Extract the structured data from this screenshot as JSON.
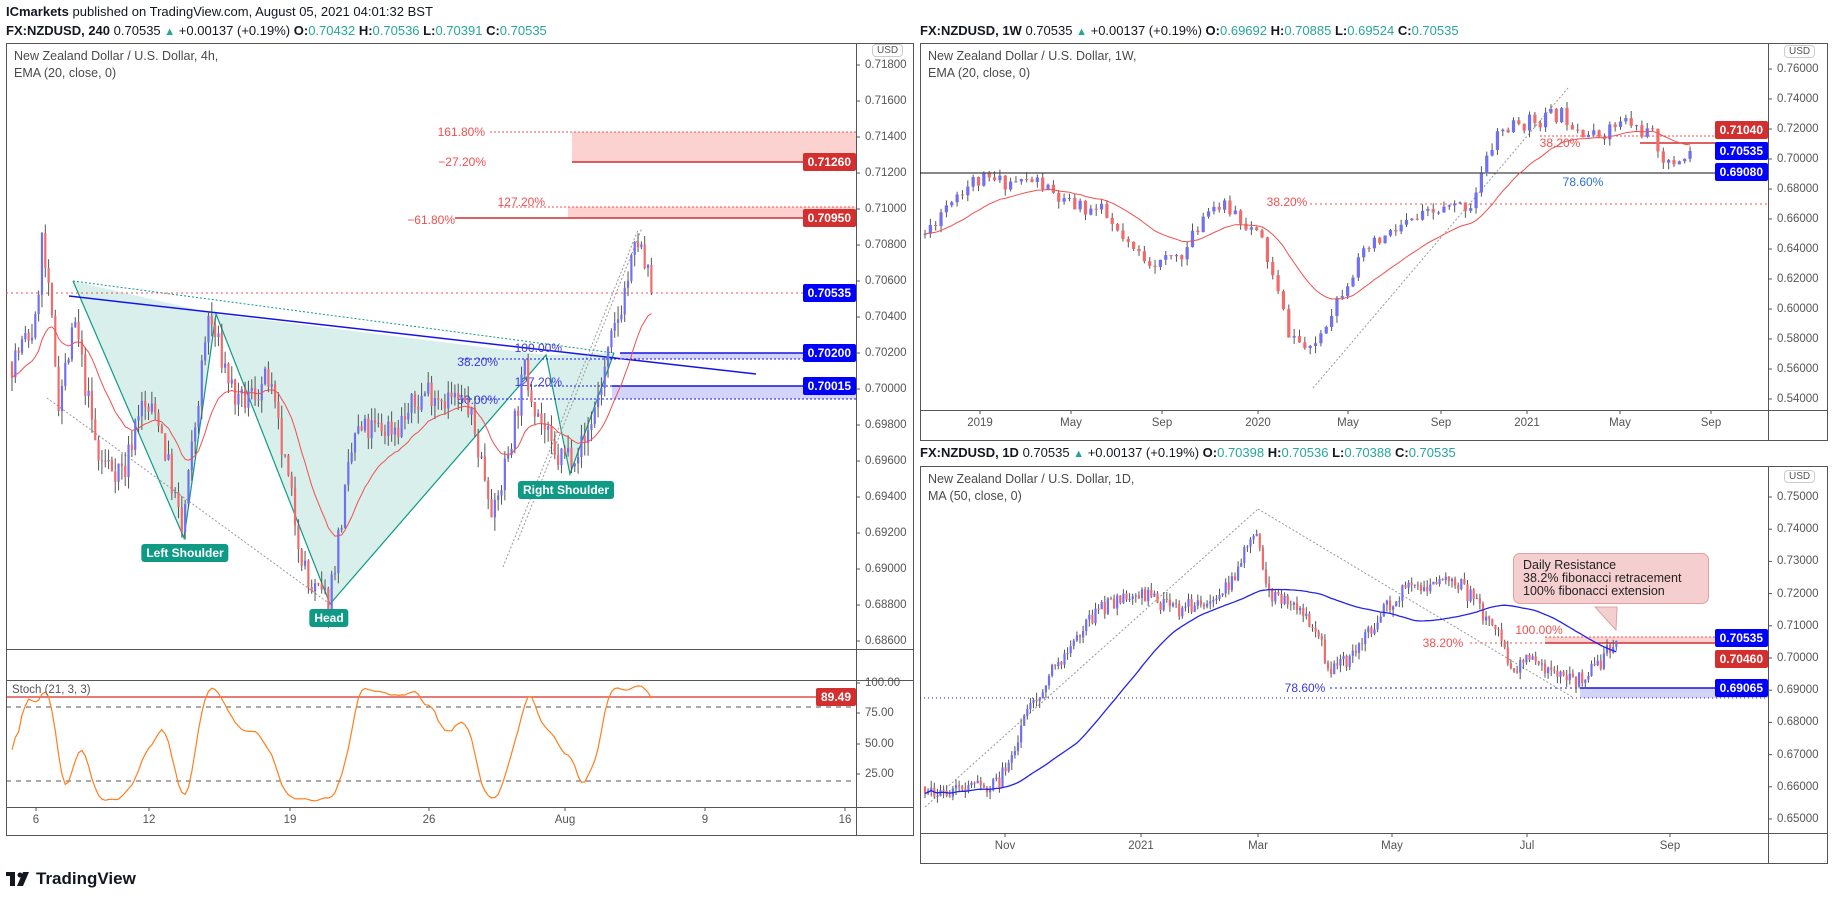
{
  "publisher": {
    "name": "ICmarkets",
    "text": "published on TradingView.com, August 05, 2021 04:01:32 BST"
  },
  "brand": {
    "logo_text": "TradingView"
  },
  "colors": {
    "up": "#7070f2",
    "down": "#f06b6b",
    "ema": "#f05050",
    "ma": "#2424e8",
    "tag_red": "#d32f2f",
    "tag_blue": "#0000ff",
    "pattern": "#0f9a86",
    "stoch": "#ff7f1e"
  },
  "h4": {
    "symbol": "FX:NZDUSD, 240",
    "last": "0.70535",
    "change": "+0.00137 (+0.19%)",
    "o": "0.70432",
    "h": "0.70536",
    "l": "0.70391",
    "c": "0.70535",
    "title": "New Zealand Dollar / U.S. Dollar, 4h,",
    "indicator": "EMA (20, close, 0)",
    "currency": "USD",
    "price_ticks": [
      "0.71800",
      "0.71600",
      "0.71400",
      "0.71200",
      "0.71000",
      "0.70800",
      "0.70600",
      "0.70400",
      "0.70200",
      "0.70000",
      "0.69800",
      "0.69600",
      "0.69400",
      "0.69200",
      "0.69000",
      "0.68800",
      "0.68600"
    ],
    "time_ticks": [
      "6",
      "12",
      "19",
      "26",
      "Aug",
      "9",
      "16"
    ],
    "price_tags": [
      {
        "value": "0.71260",
        "kind": "red"
      },
      {
        "value": "0.70950",
        "kind": "red"
      },
      {
        "value": "0.70535",
        "kind": "blue"
      },
      {
        "value": "0.70200",
        "kind": "blue"
      },
      {
        "value": "0.70015",
        "kind": "blue"
      }
    ],
    "fib": {
      "f1618": "161.80%",
      "fm272": "−27.20%",
      "f1272": "127.20%",
      "fm618": "−61.80%",
      "f100": "100.00%",
      "f382": "38.20%",
      "f1272b": "127.20%",
      "f50": "50.00%"
    },
    "patterns": {
      "left_shoulder": "Left Shoulder",
      "head": "Head",
      "right_shoulder": "Right Shoulder"
    },
    "stoch": {
      "title": "Stoch (21, 3, 3)",
      "ticks": [
        "100.00",
        "75.00",
        "50.00",
        "25.00"
      ],
      "value": "89.49",
      "upper": 80,
      "lower": 20
    },
    "price_path": [
      [
        0,
        0.7015
      ],
      [
        7,
        0.7035
      ],
      [
        9,
        0.7082
      ],
      [
        12,
        0.7035
      ],
      [
        14,
        0.6995
      ],
      [
        19,
        0.7035
      ],
      [
        26,
        0.696
      ],
      [
        34,
        0.6955
      ],
      [
        38,
        0.699
      ],
      [
        44,
        0.6985
      ],
      [
        51,
        0.692
      ],
      [
        59,
        0.704
      ],
      [
        68,
        0.699
      ],
      [
        77,
        0.7005
      ],
      [
        89,
        0.689
      ],
      [
        95,
        0.6882
      ],
      [
        103,
        0.6975
      ],
      [
        116,
        0.698
      ],
      [
        125,
        0.7
      ],
      [
        137,
        0.699
      ],
      [
        145,
        0.693
      ],
      [
        154,
        0.701
      ],
      [
        163,
        0.696
      ],
      [
        172,
        0.697
      ],
      [
        178,
        0.701
      ],
      [
        184,
        0.7055
      ],
      [
        188,
        0.7082
      ],
      [
        192,
        0.70535
      ]
    ]
  },
  "w1": {
    "symbol": "FX:NZDUSD, 1W",
    "last": "0.70535",
    "change": "+0.00137 (+0.19%)",
    "o": "0.69692",
    "h": "0.70885",
    "l": "0.69524",
    "c": "0.70535",
    "title": "New Zealand Dollar / U.S. Dollar, 1W,",
    "indicator": "EMA (20, close, 0)",
    "currency": "USD",
    "price_ticks": [
      "0.76000",
      "0.74000",
      "0.72000",
      "0.70000",
      "0.68000",
      "0.66000",
      "0.64000",
      "0.62000",
      "0.60000",
      "0.58000",
      "0.56000",
      "0.54000"
    ],
    "time_ticks": [
      "2019",
      "May",
      "Sep",
      "2020",
      "May",
      "Sep",
      "2021",
      "May",
      "Sep"
    ],
    "price_tags": [
      {
        "value": "0.71040",
        "kind": "red"
      },
      {
        "value": "0.70535",
        "kind": "blue"
      },
      {
        "value": "0.69080",
        "kind": "blue"
      }
    ],
    "fib": {
      "f382a": "38.20%",
      "f786": "78.60%",
      "f382b": "38.20%"
    },
    "price_path": [
      [
        0,
        0.65
      ],
      [
        5,
        0.675
      ],
      [
        9,
        0.685
      ],
      [
        14,
        0.685
      ],
      [
        21,
        0.685
      ],
      [
        26,
        0.67
      ],
      [
        33,
        0.665
      ],
      [
        38,
        0.64
      ],
      [
        44,
        0.63
      ],
      [
        49,
        0.64
      ],
      [
        53,
        0.67
      ],
      [
        58,
        0.665
      ],
      [
        63,
        0.645
      ],
      [
        68,
        0.585
      ],
      [
        72,
        0.57
      ],
      [
        76,
        0.6
      ],
      [
        79,
        0.62
      ],
      [
        83,
        0.64
      ],
      [
        89,
        0.655
      ],
      [
        96,
        0.665
      ],
      [
        102,
        0.67
      ],
      [
        107,
        0.718
      ],
      [
        113,
        0.725
      ],
      [
        119,
        0.73
      ],
      [
        125,
        0.715
      ],
      [
        131,
        0.725
      ],
      [
        136,
        0.715
      ],
      [
        139,
        0.695
      ],
      [
        143,
        0.70535
      ]
    ]
  },
  "d1": {
    "symbol": "FX:NZDUSD, 1D",
    "last": "0.70535",
    "change": "+0.00137 (+0.19%)",
    "o": "0.70398",
    "h": "0.70536",
    "l": "0.70388",
    "c": "0.70535",
    "title": "New Zealand Dollar / U.S. Dollar, 1D,",
    "indicator": "MA (50, close, 0)",
    "currency": "USD",
    "price_ticks": [
      "0.75000",
      "0.74000",
      "0.73000",
      "0.72000",
      "0.71000",
      "0.70000",
      "0.69000",
      "0.68000",
      "0.67000",
      "0.66000",
      "0.65000"
    ],
    "time_ticks": [
      "Nov",
      "2021",
      "Mar",
      "May",
      "Jul",
      "Sep"
    ],
    "price_tags": [
      {
        "value": "0.70535",
        "kind": "blue"
      },
      {
        "value": "0.70460",
        "kind": "red"
      },
      {
        "value": "0.69065",
        "kind": "blue"
      }
    ],
    "fib": {
      "f382": "38.20%",
      "f100": "100.00%",
      "f786": "78.60%"
    },
    "callout": {
      "line1": "Daily Resistance",
      "line2": "38.2% fibonacci retracement",
      "line3": "100% fibonacci extension"
    },
    "price_path": [
      [
        0,
        0.66
      ],
      [
        11,
        0.658
      ],
      [
        24,
        0.662
      ],
      [
        34,
        0.685
      ],
      [
        47,
        0.705
      ],
      [
        56,
        0.715
      ],
      [
        69,
        0.72
      ],
      [
        82,
        0.715
      ],
      [
        98,
        0.722
      ],
      [
        106,
        0.74
      ],
      [
        111,
        0.72
      ],
      [
        121,
        0.715
      ],
      [
        126,
        0.71
      ],
      [
        131,
        0.695
      ],
      [
        137,
        0.7
      ],
      [
        144,
        0.71
      ],
      [
        153,
        0.72
      ],
      [
        163,
        0.723
      ],
      [
        171,
        0.725
      ],
      [
        179,
        0.715
      ],
      [
        185,
        0.71
      ],
      [
        189,
        0.695
      ],
      [
        195,
        0.7
      ],
      [
        205,
        0.695
      ],
      [
        211,
        0.693
      ],
      [
        218,
        0.699
      ],
      [
        223,
        0.70535
      ]
    ]
  }
}
